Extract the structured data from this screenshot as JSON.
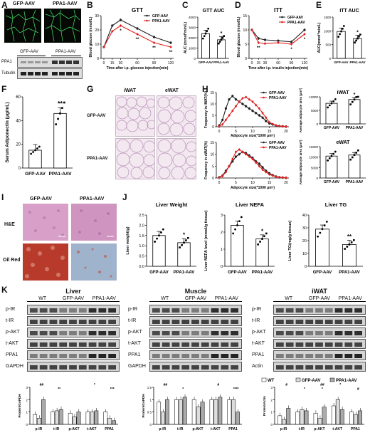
{
  "panels": {
    "A": {
      "letter": "A",
      "groups": [
        "GFP-AAV",
        "PPA1-AAV"
      ],
      "blot_rows": [
        "PPA1",
        "Tubulin"
      ]
    },
    "B": {
      "letter": "B",
      "title": "GTT",
      "ylabel": "Blood glucose (mmol/L)",
      "xlabel": "Time after i.p. glucose injection(min)",
      "legend": [
        "GFP-AAV",
        "PPA1-AAV"
      ],
      "stars": [
        "*",
        "**",
        "**",
        "**"
      ],
      "chart_data": {
        "type": "line",
        "x": [
          0,
          15,
          30,
          60,
          90,
          120
        ],
        "ylim": [
          0,
          30
        ],
        "yticks": [
          0,
          10,
          20,
          30
        ],
        "series": [
          {
            "name": "GFP-AAV",
            "color": "#222222",
            "values": [
              8,
              23,
              27,
              21,
              15,
              11
            ]
          },
          {
            "name": "PPA1-AAV",
            "color": "#e02020",
            "values": [
              8,
              19,
              23,
              17,
              11,
              8
            ]
          }
        ]
      }
    },
    "C": {
      "letter": "C",
      "title": "GTT AUC",
      "ylabel": "AUC (mmol*min/L)",
      "xticks": [
        "GFP-AAV",
        "PPA1-AAV"
      ],
      "star": "*",
      "chart_data": {
        "type": "bar",
        "categories": [
          "GFP-AAV",
          "PPA1-AAV"
        ],
        "values": [
          2400,
          1800
        ],
        "ylim": [
          0,
          4000
        ],
        "yticks": [
          0,
          1000,
          2000,
          3000,
          4000
        ]
      }
    },
    "D": {
      "letter": "D",
      "title": "ITT",
      "ylabel": "Blood glucose (mmol/L)",
      "xlabel": "Time after i.p. insulin injection(min)",
      "legend": [
        "GFP-AAV",
        "PPA1-AAV"
      ],
      "stars": [
        "**",
        "*",
        "*"
      ],
      "chart_data": {
        "type": "line",
        "x": [
          0,
          15,
          30,
          60,
          90,
          120
        ],
        "ylim": [
          0,
          15
        ],
        "yticks": [
          0,
          5,
          10,
          15
        ],
        "series": [
          {
            "name": "GFP-AAV",
            "color": "#222222",
            "values": [
              10,
              7,
              6.5,
              6.2,
              5.8,
              10
            ]
          },
          {
            "name": "PPA1-AAV",
            "color": "#e02020",
            "values": [
              10,
              5.5,
              5.2,
              5.5,
              5.0,
              8.5
            ]
          }
        ]
      }
    },
    "E": {
      "letter": "E",
      "title": "ITT AUC",
      "ylabel": "AUC(mmol*min/L)",
      "xticks": [
        "GFP-AAV",
        "PPA1-AAV"
      ],
      "star": "*",
      "chart_data": {
        "type": "bar",
        "categories": [
          "GFP-AAV",
          "PPA1-AAV"
        ],
        "values": [
          980,
          720
        ],
        "ylim": [
          0,
          1500
        ],
        "yticks": [
          0,
          500,
          1000,
          1500
        ]
      }
    },
    "F": {
      "letter": "F",
      "ylabel": "Serum Adiponectin (μg/mL)",
      "xticks": [
        "GFP-AAV",
        "PPA1-AAV"
      ],
      "star": "**",
      "chart_data": {
        "type": "bar",
        "categories": [
          "GFP-AAV",
          "PPA1-AAV"
        ],
        "values": [
          15,
          46
        ],
        "ylim": [
          0,
          60
        ],
        "yticks": [
          0,
          20,
          40,
          60
        ]
      }
    },
    "G": {
      "letter": "G",
      "cols": [
        "iWAT",
        "eWAT"
      ],
      "rows": [
        "GFP-AAV",
        "PPA1-AAV"
      ]
    },
    "H": {
      "letter": "H",
      "hist_ylabel_top": "Frequency in iWAT(%)",
      "hist_ylabel_bottom": "Frequency in eWAT(%)",
      "hist_xlabel": "Adipocyte size(*1000 μm²)",
      "legend": [
        "GFP-AAV",
        "PPA1-AAV"
      ],
      "bar_ylabel": "Average adipocyte area (μm²)",
      "iwat_title": "iWAT",
      "ewat_title": "eWAT",
      "xticks": [
        "GFP-AAV",
        "PPA1-AAV"
      ],
      "star": "*",
      "hist_top": {
        "type": "line",
        "x": [
          0,
          1,
          2,
          3,
          4,
          5,
          6,
          7,
          8,
          9,
          10,
          11,
          12,
          13,
          14,
          15,
          16,
          17,
          18,
          19,
          20
        ],
        "xticks": [
          0,
          5,
          10,
          15,
          20
        ],
        "yticks": [
          0,
          5,
          10,
          15
        ],
        "ylim": [
          0,
          15
        ],
        "series": [
          {
            "name": "GFP-AAV",
            "color": "#222222",
            "values": [
              0.5,
              3,
              8,
              12,
              13.5,
              12,
              11,
              10,
              9,
              8,
              7,
              6,
              5,
              4,
              2.5,
              1.5,
              1,
              0.5,
              0.3,
              0.2,
              0.1
            ]
          },
          {
            "name": "PPA1-AAV",
            "color": "#e02020",
            "values": [
              0.2,
              1,
              3,
              5,
              7,
              9,
              11,
              12.5,
              13,
              12,
              11,
              9.5,
              8,
              6,
              4,
              2,
              1.2,
              0.6,
              0.3,
              0.2,
              0.1
            ]
          }
        ]
      },
      "hist_bottom": {
        "type": "line",
        "x": [
          0,
          1,
          2,
          3,
          4,
          5,
          6,
          7,
          8,
          9,
          10,
          11,
          12,
          13,
          14,
          15,
          16,
          17,
          18,
          19,
          20
        ],
        "xticks": [
          0,
          5,
          10,
          15,
          20
        ],
        "yticks": [
          0,
          5,
          10,
          15
        ],
        "ylim": [
          0,
          15
        ],
        "series": [
          {
            "name": "GFP-AAV",
            "color": "#222222",
            "values": [
              0.3,
              1,
              3,
              5,
              7,
              9,
              10,
              11,
              10.5,
              9.5,
              8.5,
              7,
              6,
              4.5,
              3,
              2,
              1.2,
              0.6,
              0.3,
              0.2,
              0.1
            ]
          },
          {
            "name": "PPA1-AAV",
            "color": "#e02020",
            "values": [
              0.2,
              0.8,
              2.5,
              5,
              8,
              11,
              12,
              11,
              10,
              9,
              8,
              6.5,
              5,
              3.5,
              2.5,
              1.5,
              1,
              0.5,
              0.3,
              0.2,
              0.1
            ]
          }
        ]
      },
      "bar_iwat": {
        "type": "bar",
        "categories": [
          "GFP-AAV",
          "PPA1-AAV"
        ],
        "values": [
          7600,
          9000
        ],
        "ylim": [
          0,
          10000
        ],
        "yticks": [
          0,
          5000,
          10000
        ]
      },
      "bar_ewat": {
        "type": "bar",
        "categories": [
          "GFP-AAV",
          "PPA1-AAV"
        ],
        "values": [
          10500,
          11000
        ],
        "ylim": [
          0,
          15000
        ],
        "yticks": [
          0,
          5000,
          10000,
          15000
        ]
      }
    },
    "I": {
      "letter": "I",
      "cols": [
        "GFP-AAV",
        "PPA1-AAV"
      ],
      "rows": [
        "H&E",
        "Oil Red"
      ]
    },
    "J": {
      "letter": "J",
      "xticks": [
        "GFP-AAV",
        "PPA1-AAV"
      ],
      "charts": [
        {
          "title": "Liver Weight",
          "ylabel": "Liver weight(g)",
          "star": "*",
          "chart_data": {
            "type": "bar",
            "categories": [
              "GFP-AAV",
              "PPA1-AAV"
            ],
            "values": [
              1.5,
              1.15
            ],
            "ylim": [
              0,
              2.5
            ],
            "yticks": [
              0.0,
              0.5,
              1.0,
              1.5,
              2.0,
              2.5
            ]
          }
        },
        {
          "title": "Liver NEFA",
          "ylabel": "Liver NEFA level (mmol/g tissue)",
          "star": "*",
          "chart_data": {
            "type": "bar",
            "categories": [
              "GFP-AAV",
              "PPA1-AAV"
            ],
            "values": [
              2.4,
              1.6
            ],
            "ylim": [
              0,
              3
            ],
            "yticks": [
              0,
              1,
              2,
              3
            ]
          }
        },
        {
          "title": "Liver TG",
          "ylabel": "Liver TG(mg/g tissue)",
          "star": "**",
          "chart_data": {
            "type": "bar",
            "categories": [
              "GFP-AAV",
              "PPA1-AAV"
            ],
            "values": [
              29,
              17
            ],
            "ylim": [
              0,
              40
            ],
            "yticks": [
              0,
              10,
              20,
              30,
              40
            ]
          }
        }
      ]
    },
    "K": {
      "letter": "K",
      "groups": [
        "WT",
        "GFP-AAV",
        "PPA1-AAV"
      ],
      "legend": [
        "WT",
        "GFP-AAV",
        "PPA1-AAV"
      ],
      "ylabels": [
        "Protein/GAPDH",
        "Protein/GAPDH",
        "Protein/Actin"
      ],
      "blots": [
        {
          "title": "Liver",
          "rows": [
            "p-IR",
            "t-IR",
            "p-AKT",
            "t-AKT",
            "PPA1",
            "GAPDH"
          ]
        },
        {
          "title": "Muscle",
          "rows": [
            "p-IR",
            "t-IR",
            "p-AKT",
            "t-AKT",
            "PPA1",
            "GAPDH"
          ]
        },
        {
          "title": "iWAT",
          "rows": [
            "p-IR",
            "t-IR",
            "p-AKT",
            "t-AKT",
            "PPA1",
            "Actin"
          ]
        }
      ],
      "quant": [
        {
          "categories": [
            "p-IR",
            "t-IR",
            "p-AKT",
            "t-AKT",
            "PPA1"
          ],
          "yticks": [
            0,
            1,
            2,
            3
          ],
          "ylim": [
            0,
            3
          ],
          "stars": [
            "##",
            "**",
            "*",
            "***"
          ],
          "series": [
            {
              "name": "WT",
              "values": [
                0.8,
                1.0,
                0.9,
                1.0,
                1.0
              ]
            },
            {
              "name": "GFP-AAV",
              "values": [
                0.5,
                1.1,
                0.6,
                1.0,
                0.5
              ]
            },
            {
              "name": "PPA1-AAV",
              "values": [
                2.0,
                1.2,
                1.0,
                1.1,
                0.3
              ]
            }
          ]
        },
        {
          "categories": [
            "p-IR",
            "t-IR",
            "p-AKT",
            "t-AKT",
            "PPA1"
          ],
          "yticks": [
            0.0,
            0.5,
            1.0,
            1.5
          ],
          "ylim": [
            0,
            1.5
          ],
          "stars": [
            "##",
            "*",
            "#",
            "****"
          ],
          "series": [
            {
              "name": "WT",
              "values": [
                0.9,
                1.0,
                1.0,
                1.0,
                1.0
              ]
            },
            {
              "name": "GFP-AAV",
              "values": [
                0.5,
                1.0,
                0.7,
                1.0,
                1.0
              ]
            },
            {
              "name": "PPA1-AAV",
              "values": [
                1.0,
                1.1,
                0.9,
                1.1,
                0.5
              ]
            }
          ]
        },
        {
          "categories": [
            "p-IR",
            "t-IR",
            "p-AKT",
            "t-AKT",
            "PPA1"
          ],
          "yticks": [
            0,
            1,
            2,
            3
          ],
          "ylim": [
            0,
            3
          ],
          "stars": [
            "#",
            "*",
            "##",
            "*",
            "*",
            "#"
          ],
          "series": [
            {
              "name": "WT",
              "values": [
                0.7,
                1.0,
                0.9,
                1.5,
                1.0
              ]
            },
            {
              "name": "GFP-AAV",
              "values": [
                0.4,
                1.2,
                0.5,
                2.0,
                0.8
              ]
            },
            {
              "name": "PPA1-AAV",
              "values": [
                1.3,
                1.1,
                1.4,
                1.2,
                1.1
              ]
            }
          ]
        }
      ]
    }
  },
  "colors": {
    "gfp": "#222222",
    "ppa1": "#e02020",
    "he_pink": "#d8a0c8",
    "oil_red": "#b83a2a",
    "oil_blue": "#9fb3cc",
    "fluor_green": "#3fd060"
  }
}
